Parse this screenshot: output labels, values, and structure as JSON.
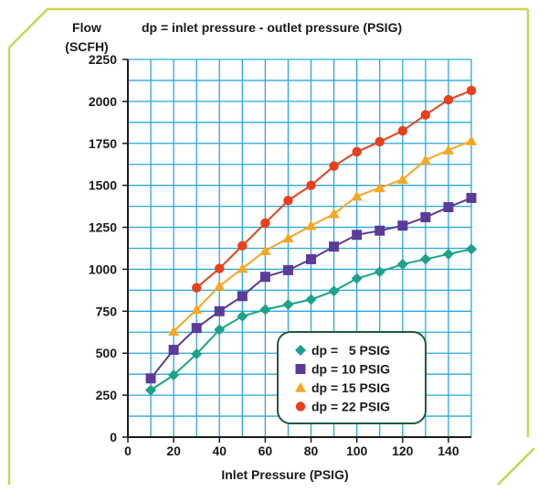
{
  "chart_data": {
    "type": "line",
    "title": "dp = inlet pressure - outlet pressure (PSIG)",
    "ylabel_line1": "Flow",
    "ylabel_line2": "(SCFH)",
    "xlabel": "Inlet Pressure (PSIG)",
    "xlim": [
      0,
      150
    ],
    "ylim": [
      0,
      2250
    ],
    "grid": true,
    "x_ticks": [
      0,
      20,
      40,
      60,
      80,
      100,
      120,
      140
    ],
    "y_ticks": [
      0,
      250,
      500,
      750,
      1000,
      1250,
      1500,
      1750,
      2000,
      2250
    ],
    "legend_position": "bottom-right",
    "colors": {
      "grid": "#29a7df",
      "axis": "#1a1a1a",
      "frame": "#c8d655",
      "legend_border": "#1d5a3c"
    },
    "series": [
      {
        "name": "dp =   5 PSIG",
        "marker": "diamond",
        "color": "#1aa38a",
        "x": [
          10,
          20,
          30,
          40,
          50,
          60,
          70,
          80,
          90,
          100,
          110,
          120,
          130,
          140,
          150
        ],
        "y": [
          280,
          370,
          495,
          640,
          720,
          760,
          790,
          820,
          870,
          945,
          985,
          1030,
          1060,
          1090,
          1120
        ]
      },
      {
        "name": "dp = 10 PSIG",
        "marker": "square",
        "color": "#5b3b98",
        "x": [
          10,
          20,
          30,
          40,
          50,
          60,
          70,
          80,
          90,
          100,
          110,
          120,
          130,
          140,
          150
        ],
        "y": [
          350,
          520,
          650,
          750,
          840,
          955,
          995,
          1060,
          1135,
          1205,
          1230,
          1260,
          1310,
          1370,
          1425
        ]
      },
      {
        "name": "dp = 15 PSIG",
        "marker": "triangle",
        "color": "#f6a623",
        "x": [
          20,
          30,
          40,
          50,
          60,
          70,
          80,
          90,
          100,
          110,
          120,
          130,
          140,
          150
        ],
        "y": [
          630,
          760,
          900,
          1005,
          1110,
          1185,
          1260,
          1330,
          1435,
          1485,
          1535,
          1650,
          1710,
          1765
        ]
      },
      {
        "name": "dp = 22 PSIG",
        "marker": "circle",
        "color": "#e8401c",
        "x": [
          30,
          40,
          50,
          60,
          70,
          80,
          90,
          100,
          110,
          120,
          130,
          140,
          150
        ],
        "y": [
          890,
          1005,
          1140,
          1275,
          1410,
          1500,
          1615,
          1700,
          1760,
          1825,
          1920,
          2010,
          2065
        ]
      }
    ]
  }
}
